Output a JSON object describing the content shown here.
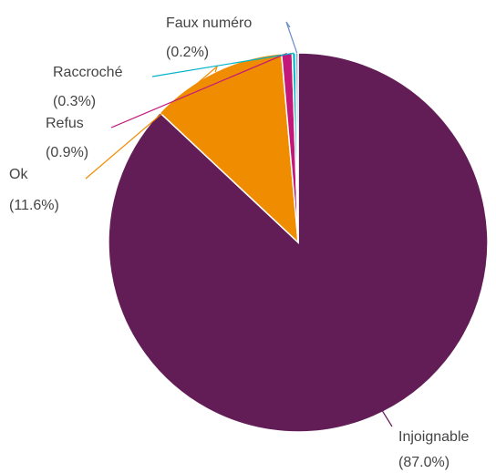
{
  "chart_data": {
    "type": "pie",
    "start_angle_deg": 0,
    "direction": "clockwise",
    "slice_border_color": "#ffffff",
    "slices": [
      {
        "label": "Injoignable",
        "percent_text": "(87.0%)",
        "value": 87.0,
        "color": "#621d56"
      },
      {
        "label": "Ok",
        "percent_text": "(11.6%)",
        "value": 11.6,
        "color": "#f08c00"
      },
      {
        "label": "Refus",
        "percent_text": "(0.9%)",
        "value": 0.9,
        "color": "#c2187a"
      },
      {
        "label": "Raccroché",
        "percent_text": "(0.3%)",
        "value": 0.3,
        "color": "#00b4c8"
      },
      {
        "label": "Faux numéro",
        "percent_text": "(0.2%)",
        "value": 0.2,
        "color": "#6b8ec6"
      }
    ]
  }
}
